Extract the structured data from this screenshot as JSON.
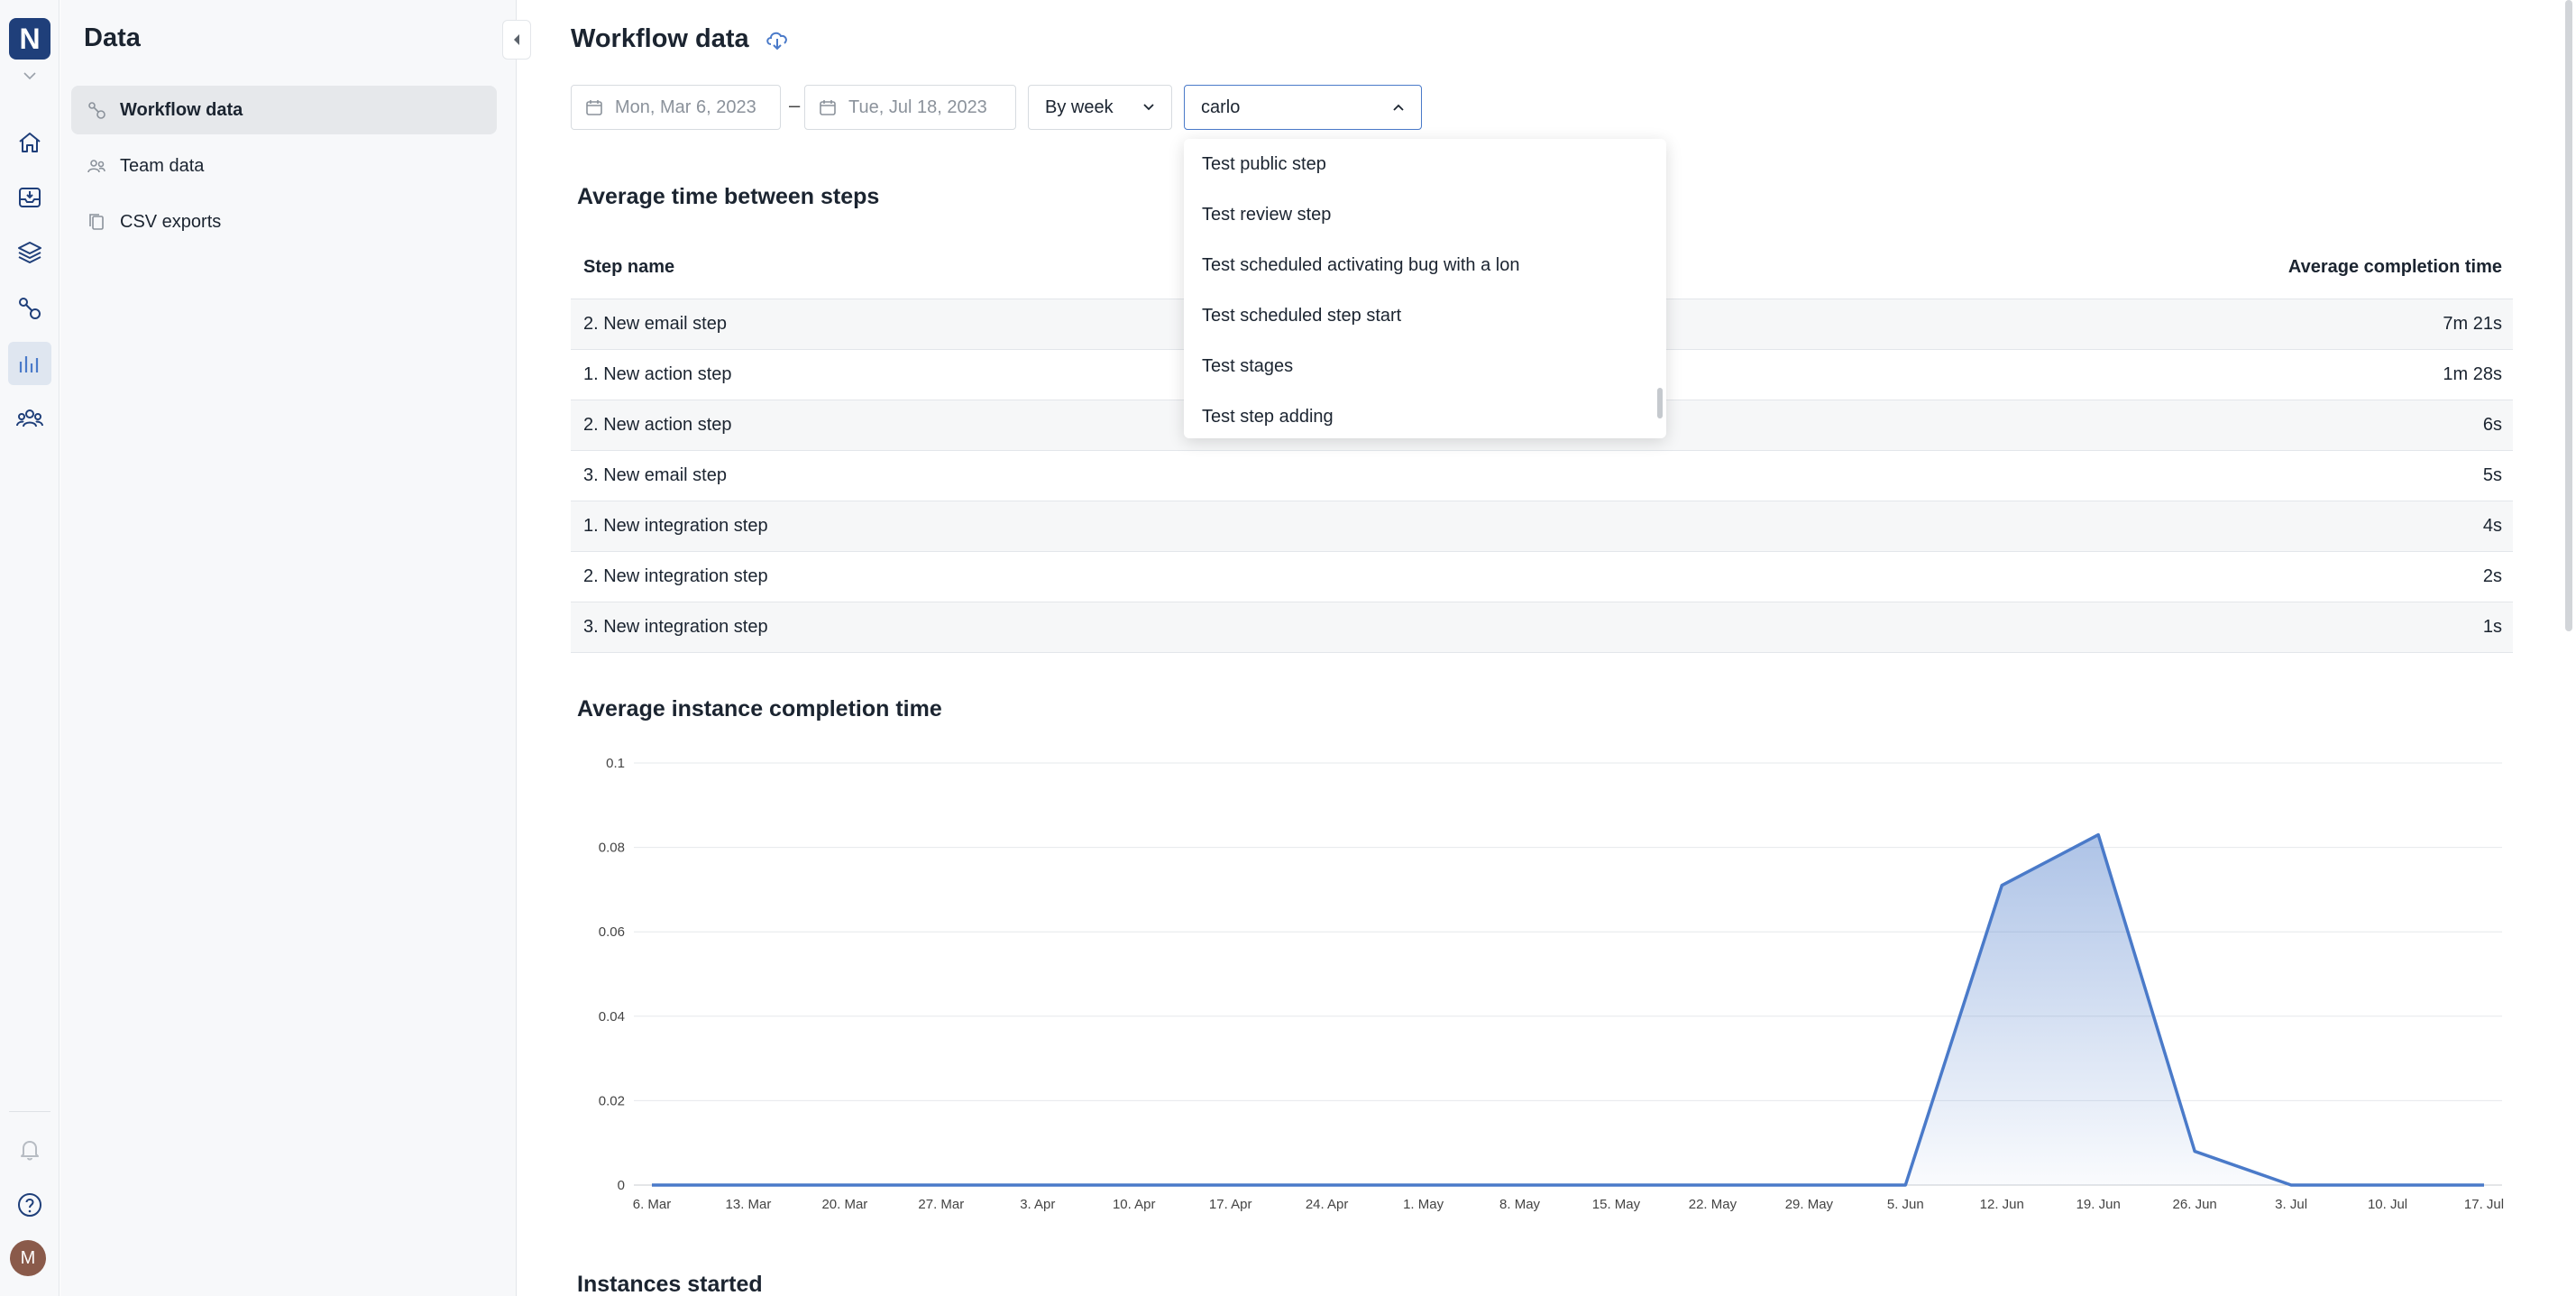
{
  "app": {
    "logo_letter": "N",
    "avatar_letter": "M"
  },
  "rail": {
    "items": [
      {
        "name": "home-icon"
      },
      {
        "name": "inbox-icon"
      },
      {
        "name": "layers-icon"
      },
      {
        "name": "workflow-icon"
      },
      {
        "name": "chart-icon",
        "active": true
      },
      {
        "name": "team-icon"
      }
    ],
    "bottom": [
      {
        "name": "bell-icon"
      },
      {
        "name": "help-icon"
      }
    ]
  },
  "sidebar": {
    "title": "Data",
    "items": [
      {
        "label": "Workflow data",
        "icon": "workflow-icon",
        "active": true
      },
      {
        "label": "Team data",
        "icon": "team-icon"
      },
      {
        "label": "CSV exports",
        "icon": "copy-icon"
      }
    ]
  },
  "header": {
    "title": "Workflow data"
  },
  "filters": {
    "start_date": "Mon, Mar 6, 2023",
    "end_date": "Tue, Jul 18, 2023",
    "date_separator": "–",
    "group_by": "By week",
    "user_search": "carlo"
  },
  "dropdown": {
    "options": [
      "Test public step",
      "Test review step",
      "Test scheduled activating bug with a lon",
      "Test scheduled step start",
      "Test stages",
      "Test step adding"
    ]
  },
  "steps_table": {
    "title": "Average time between steps",
    "columns": [
      "Step name",
      "Average completion time"
    ],
    "rows": [
      {
        "name": "2. New email step",
        "time": "7m 21s"
      },
      {
        "name": "1. New action step",
        "time": "1m 28s"
      },
      {
        "name": "2. New action step",
        "time": "6s"
      },
      {
        "name": "3. New email step",
        "time": "5s"
      },
      {
        "name": "1. New integration step",
        "time": "4s"
      },
      {
        "name": "2. New integration step",
        "time": "2s"
      },
      {
        "name": "3. New integration step",
        "time": "1s"
      }
    ]
  },
  "completion_section": {
    "title": "Average instance completion time"
  },
  "instances_section": {
    "title": "Instances started"
  },
  "colors": {
    "accent": "#4a7ac9",
    "brand": "#1f3f7a"
  },
  "chart_data": {
    "type": "area",
    "title": "Average instance completion time",
    "categories": [
      "6. Mar",
      "13. Mar",
      "20. Mar",
      "27. Mar",
      "3. Apr",
      "10. Apr",
      "17. Apr",
      "24. Apr",
      "1. May",
      "8. May",
      "15. May",
      "22. May",
      "29. May",
      "5. Jun",
      "12. Jun",
      "19. Jun",
      "26. Jun",
      "3. Jul",
      "10. Jul",
      "17. Jul"
    ],
    "values": [
      0,
      0,
      0,
      0,
      0,
      0,
      0,
      0,
      0,
      0,
      0,
      0,
      0,
      0,
      0.071,
      0.083,
      0.008,
      0,
      0,
      0
    ],
    "yticks": [
      "0",
      "0.02",
      "0.04",
      "0.06",
      "0.08",
      "0.1"
    ],
    "ylim": [
      0,
      0.1
    ],
    "grid": true
  }
}
